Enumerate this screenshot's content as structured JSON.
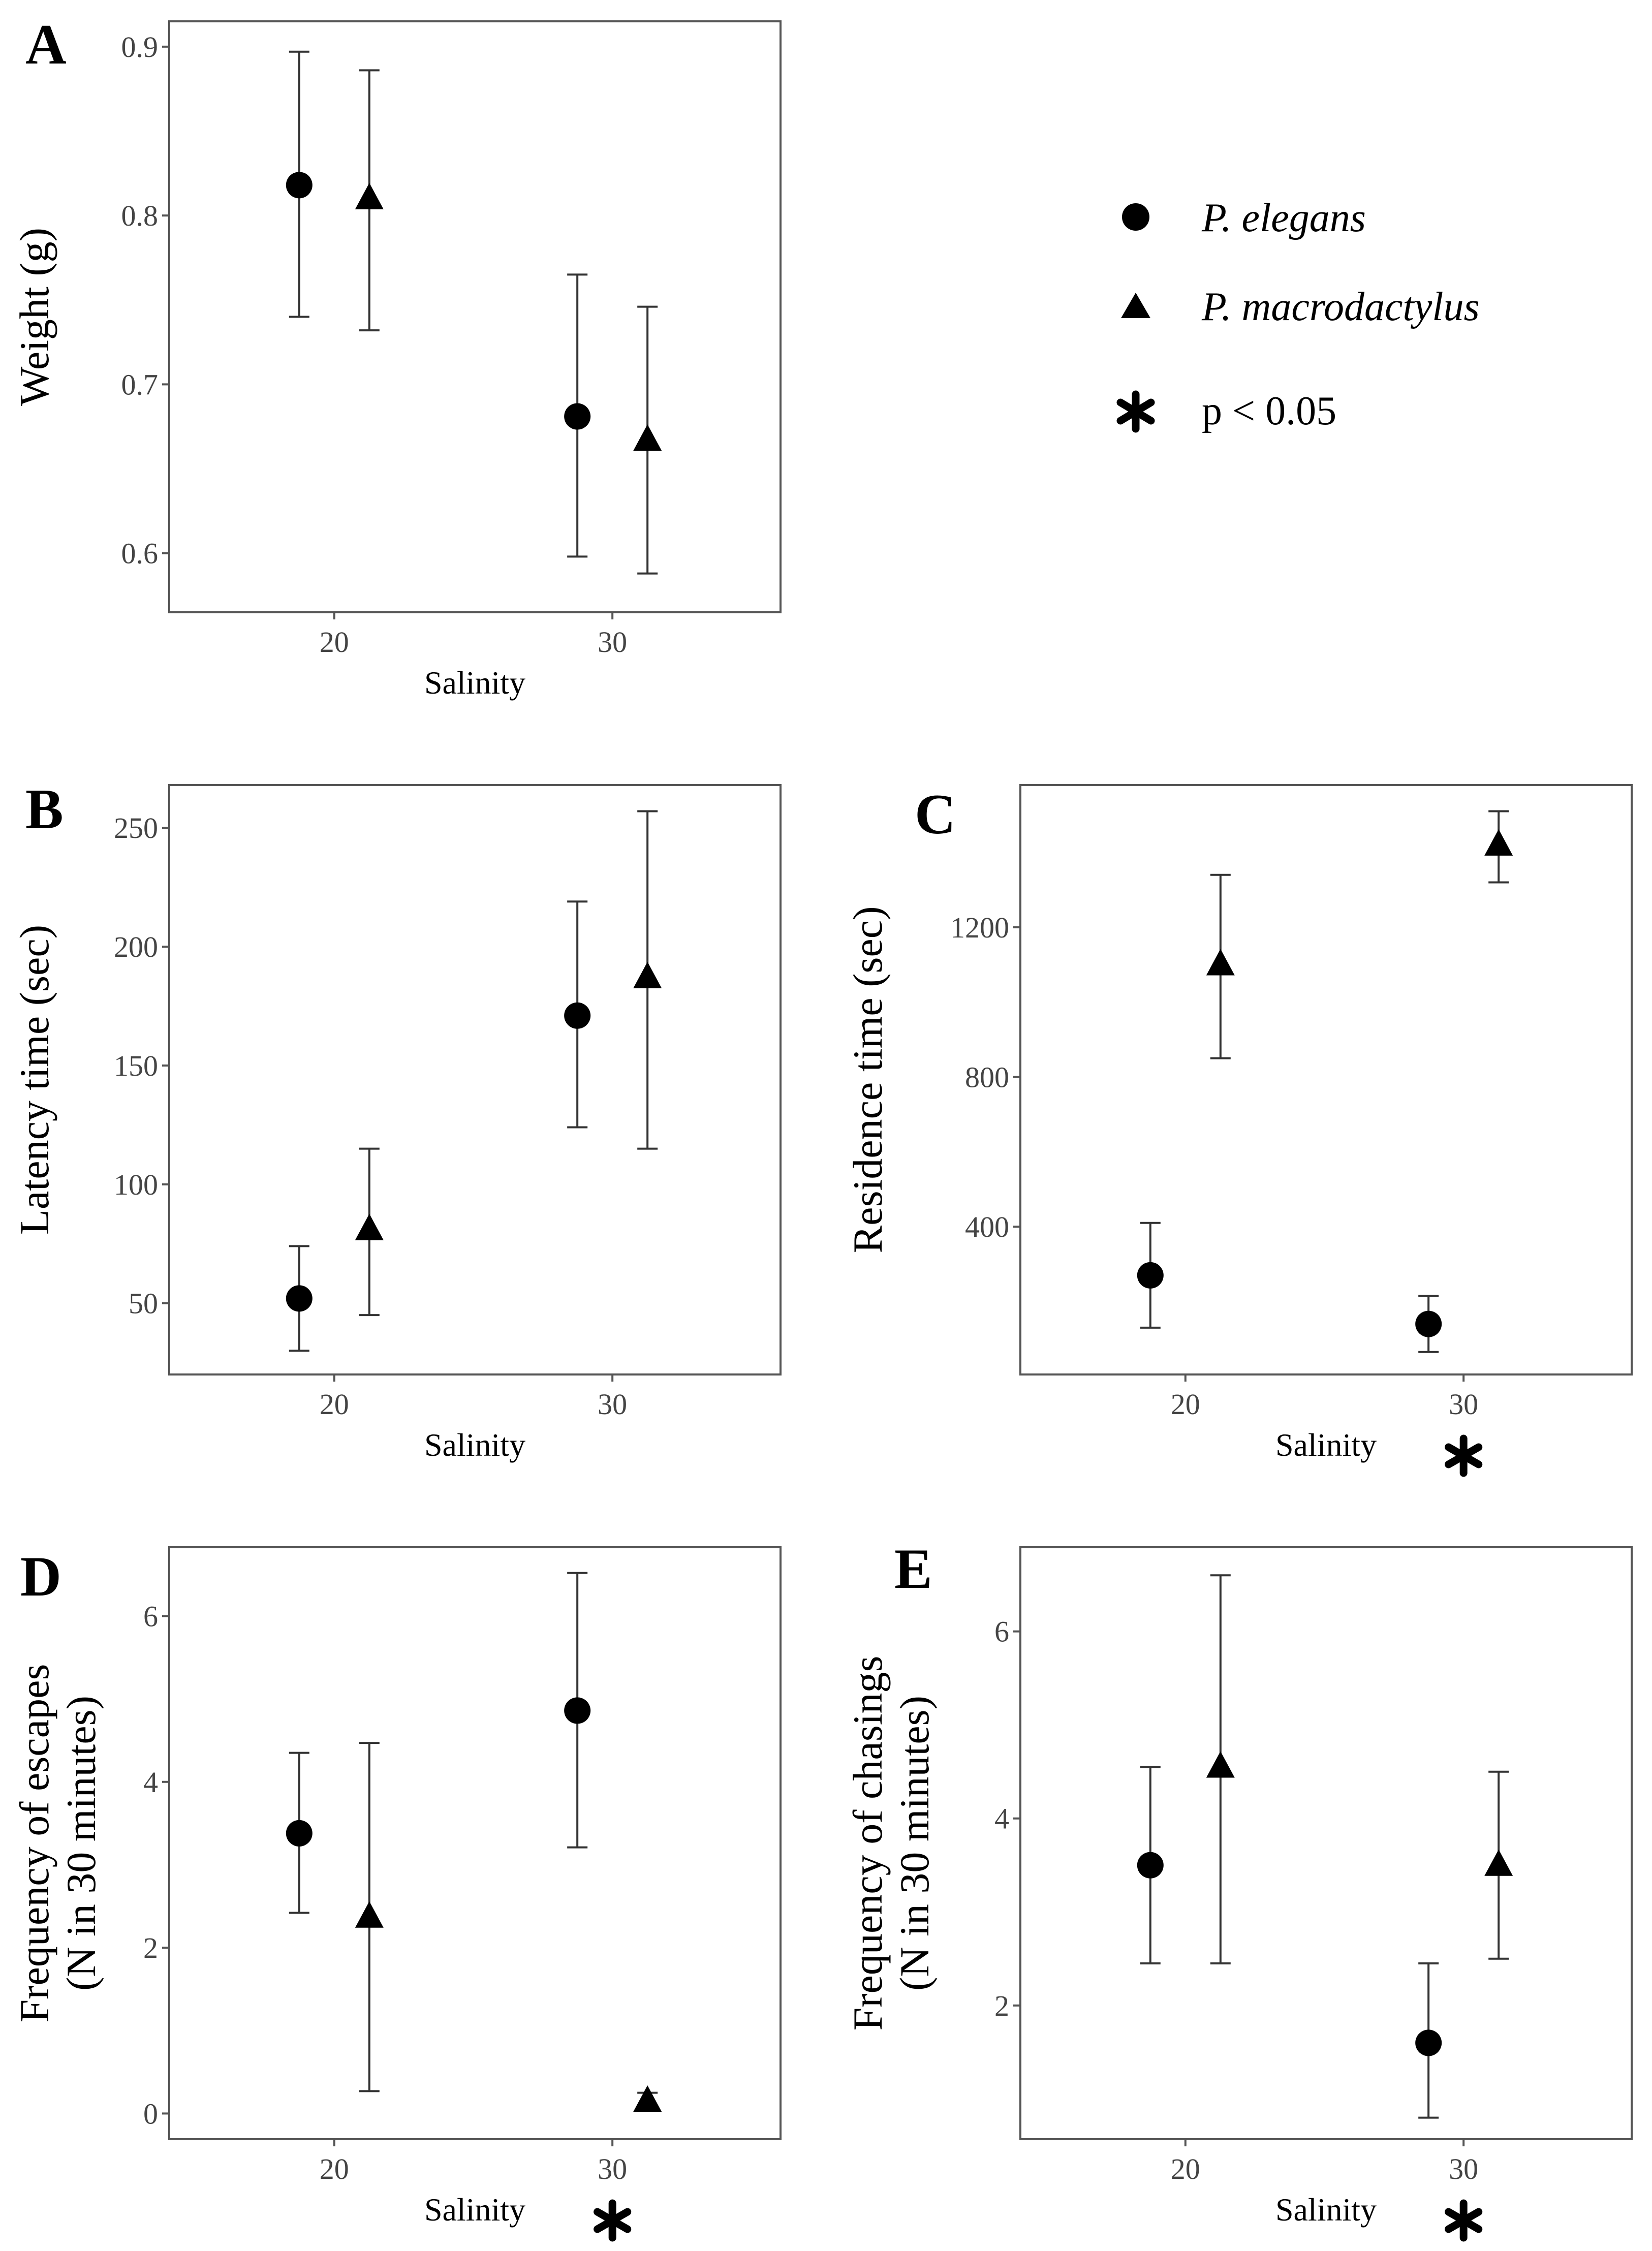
{
  "legend": {
    "items": [
      {
        "marker": "circle",
        "label": "P. elegans",
        "italic": true
      },
      {
        "marker": "triangle",
        "label": "P. macrodactylus",
        "italic": true
      },
      {
        "marker": "asterisk",
        "label": "p < 0.05",
        "italic": false
      }
    ]
  },
  "chart_data": [
    {
      "panel": "A",
      "type": "scatter",
      "xlabel": "Salinity",
      "ylabel": [
        "Weight (g)"
      ],
      "ylim": [
        0.565,
        0.915
      ],
      "yticks": [
        0.6,
        0.7,
        0.8,
        0.9
      ],
      "ytick_labels": [
        "0.6",
        "0.7",
        "0.8",
        "0.9"
      ],
      "categories": [
        "20",
        "30"
      ],
      "significant_salinity": [],
      "series": [
        {
          "name": "P. elegans",
          "marker": "circle",
          "values": [
            0.818,
            0.681
          ],
          "lower": [
            0.74,
            0.598
          ],
          "upper": [
            0.897,
            0.765
          ]
        },
        {
          "name": "P. macrodactylus",
          "marker": "triangle",
          "values": [
            0.81,
            0.667
          ],
          "lower": [
            0.732,
            0.588
          ],
          "upper": [
            0.886,
            0.746
          ]
        }
      ]
    },
    {
      "panel": "B",
      "type": "scatter",
      "xlabel": "Salinity",
      "ylabel": [
        "Latency time (sec)"
      ],
      "ylim": [
        20,
        268
      ],
      "yticks": [
        50,
        100,
        150,
        200,
        250
      ],
      "ytick_labels": [
        "50",
        "100",
        "150",
        "200",
        "250"
      ],
      "categories": [
        "20",
        "30"
      ],
      "significant_salinity": [],
      "series": [
        {
          "name": "P. elegans",
          "marker": "circle",
          "values": [
            52,
            171
          ],
          "lower": [
            30,
            124
          ],
          "upper": [
            74,
            219
          ]
        },
        {
          "name": "P. macrodactylus",
          "marker": "triangle",
          "values": [
            81,
            187
          ],
          "lower": [
            45,
            115
          ],
          "upper": [
            115,
            257
          ]
        }
      ]
    },
    {
      "panel": "C",
      "type": "scatter",
      "xlabel": "Salinity",
      "ylabel": [
        "Residence time (sec)"
      ],
      "ylim": [
        5,
        1580
      ],
      "yticks": [
        400,
        800,
        1200
      ],
      "ytick_labels": [
        "400",
        "800",
        "1200"
      ],
      "categories": [
        "20",
        "30"
      ],
      "significant_salinity": [
        "30"
      ],
      "series": [
        {
          "name": "P. elegans",
          "marker": "circle",
          "values": [
            270,
            140
          ],
          "lower": [
            130,
            65
          ],
          "upper": [
            410,
            215
          ]
        },
        {
          "name": "P. macrodactylus",
          "marker": "triangle",
          "values": [
            1100,
            1420
          ],
          "lower": [
            850,
            1320
          ],
          "upper": [
            1340,
            1510
          ]
        }
      ]
    },
    {
      "panel": "D",
      "type": "scatter",
      "xlabel": "Salinity",
      "ylabel": [
        "Frequency of escapes",
        "(N in 30 minutes)"
      ],
      "ylim": [
        -0.31,
        6.83
      ],
      "yticks": [
        0,
        2,
        4,
        6
      ],
      "ytick_labels": [
        "0",
        "2",
        "4",
        "6"
      ],
      "categories": [
        "20",
        "30"
      ],
      "significant_salinity": [
        "30"
      ],
      "series": [
        {
          "name": "P. elegans",
          "marker": "circle",
          "values": [
            3.38,
            4.86
          ],
          "lower": [
            2.42,
            3.21
          ],
          "upper": [
            4.35,
            6.52
          ]
        },
        {
          "name": "P. macrodactylus",
          "marker": "triangle",
          "values": [
            2.37,
            0.15
          ],
          "lower": [
            0.27,
            0.05
          ],
          "upper": [
            4.47,
            0.25
          ]
        }
      ]
    },
    {
      "panel": "E",
      "type": "scatter",
      "xlabel": "Salinity",
      "ylabel": [
        "Frequency of chasings",
        "(N in 30 minutes)"
      ],
      "ylim": [
        0.57,
        6.9
      ],
      "yticks": [
        2,
        4,
        6
      ],
      "ytick_labels": [
        "2",
        "4",
        "6"
      ],
      "categories": [
        "20",
        "30"
      ],
      "significant_salinity": [
        "30"
      ],
      "series": [
        {
          "name": "P. elegans",
          "marker": "circle",
          "values": [
            3.5,
            1.6
          ],
          "lower": [
            2.45,
            0.8
          ],
          "upper": [
            4.55,
            2.45
          ]
        },
        {
          "name": "P. macrodactylus",
          "marker": "triangle",
          "values": [
            4.55,
            3.5
          ],
          "lower": [
            2.45,
            2.5
          ],
          "upper": [
            6.6,
            4.5
          ]
        }
      ]
    }
  ]
}
